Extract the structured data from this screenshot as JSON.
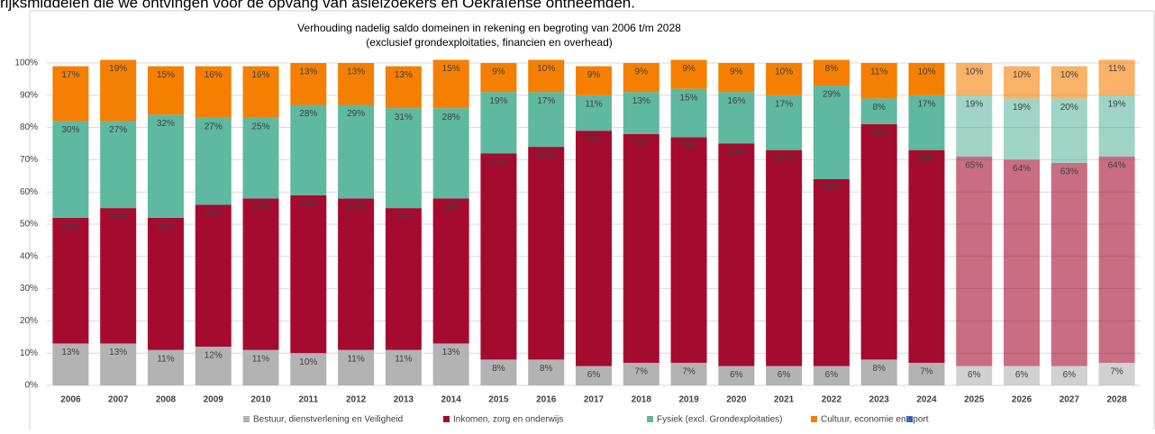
{
  "header_text": "rijksmiddelen die we ontvingen voor de opvang van asielzoekers en Oekraïense ontheemden.",
  "chart_data": {
    "type": "stacked_bar",
    "title": "Verhouding nadelig saldo domeinen in rekening en begroting van 2006 t/m 2028",
    "subtitle": "(exclusief grondexploitaties, financien en overhead)",
    "categories": [
      "2006",
      "2007",
      "2008",
      "2009",
      "2010",
      "2011",
      "2012",
      "2013",
      "2014",
      "2015",
      "2016",
      "2017",
      "2018",
      "2019",
      "2020",
      "2021",
      "2022",
      "2023",
      "2024",
      "2025",
      "2026",
      "2027",
      "2028"
    ],
    "bar_opacity": [
      1,
      1,
      1,
      1,
      1,
      1,
      1,
      1,
      1,
      1,
      1,
      1,
      1,
      1,
      1,
      1,
      1,
      1,
      1,
      0.6,
      0.6,
      0.6,
      0.6
    ],
    "ylim": [
      0,
      100
    ],
    "yticks": [
      {
        "value": 0,
        "label": "0%"
      },
      {
        "value": 10,
        "label": "10%"
      },
      {
        "value": 20,
        "label": "20%"
      },
      {
        "value": 30,
        "label": "30%"
      },
      {
        "value": 40,
        "label": "40%"
      },
      {
        "value": 50,
        "label": "50%"
      },
      {
        "value": 60,
        "label": "60%"
      },
      {
        "value": 70,
        "label": "70%"
      },
      {
        "value": 80,
        "label": "80%"
      },
      {
        "value": 90,
        "label": "90%"
      },
      {
        "value": 100,
        "label": "100%"
      }
    ],
    "grid": true,
    "series": [
      {
        "name": "Bestuur, dienstverlening en Veiligheid",
        "color": "#b3b3b3",
        "label_color": "#404040",
        "values": [
          13,
          13,
          11,
          12,
          11,
          10,
          11,
          11,
          13,
          8,
          8,
          6,
          7,
          7,
          6,
          6,
          6,
          8,
          7,
          6,
          6,
          6,
          7
        ],
        "value_labels": [
          "13%",
          "13%",
          "11%",
          "12%",
          "11%",
          "10%",
          "11%",
          "11%",
          "13%",
          "8%",
          "8%",
          "6%",
          "7%",
          "7%",
          "6%",
          "6%",
          "6%",
          "8%",
          "7%",
          "6%",
          "6%",
          "6%",
          "7%"
        ]
      },
      {
        "name": "Inkomen, zorg en onderwijs",
        "color": "#a50b2f",
        "label_color": "#ffffff",
        "values": [
          39,
          42,
          41,
          44,
          47,
          49,
          47,
          44,
          45,
          64,
          66,
          73,
          71,
          70,
          69,
          67,
          58,
          73,
          66,
          65,
          64,
          63,
          64
        ],
        "value_labels": [
          "39%",
          "42%",
          "41%",
          "44%",
          "47%",
          "49%",
          "47%",
          "44%",
          "45%",
          "64%",
          "66%",
          "73%",
          "71%",
          "70%",
          "69%",
          "67%",
          "58%",
          "73%",
          "66%",
          "65%",
          "64%",
          "63%",
          "64%"
        ]
      },
      {
        "name": "Fysiek (excl. Grondexploitaties)",
        "color": "#5fb8a0",
        "label_color": "#202020",
        "values": [
          30,
          27,
          32,
          27,
          25,
          28,
          29,
          31,
          28,
          19,
          17,
          11,
          13,
          15,
          16,
          17,
          29,
          8,
          17,
          19,
          19,
          20,
          19
        ],
        "value_labels": [
          "30%",
          "27%",
          "32%",
          "27%",
          "25%",
          "28%",
          "29%",
          "31%",
          "28%",
          "19%",
          "17%",
          "11%",
          "13%",
          "15%",
          "16%",
          "17%",
          "29%",
          "8%",
          "17%",
          "19%",
          "19%",
          "20%",
          "19%"
        ]
      },
      {
        "name": "Cultuur, economie en sport",
        "color": "#f57f00",
        "label_color": "#202020",
        "values": [
          17,
          19,
          15,
          16,
          16,
          13,
          13,
          13,
          15,
          9,
          10,
          9,
          9,
          9,
          9,
          10,
          8,
          11,
          10,
          10,
          10,
          10,
          11
        ],
        "value_labels": [
          "17%",
          "19%",
          "15%",
          "16%",
          "16%",
          "13%",
          "13%",
          "13%",
          "15%",
          "9%",
          "10%",
          "9%",
          "9%",
          "9%",
          "9%",
          "10%",
          "8%",
          "11%",
          "10%",
          "10%",
          "10%",
          "10%",
          "11%"
        ]
      }
    ]
  }
}
